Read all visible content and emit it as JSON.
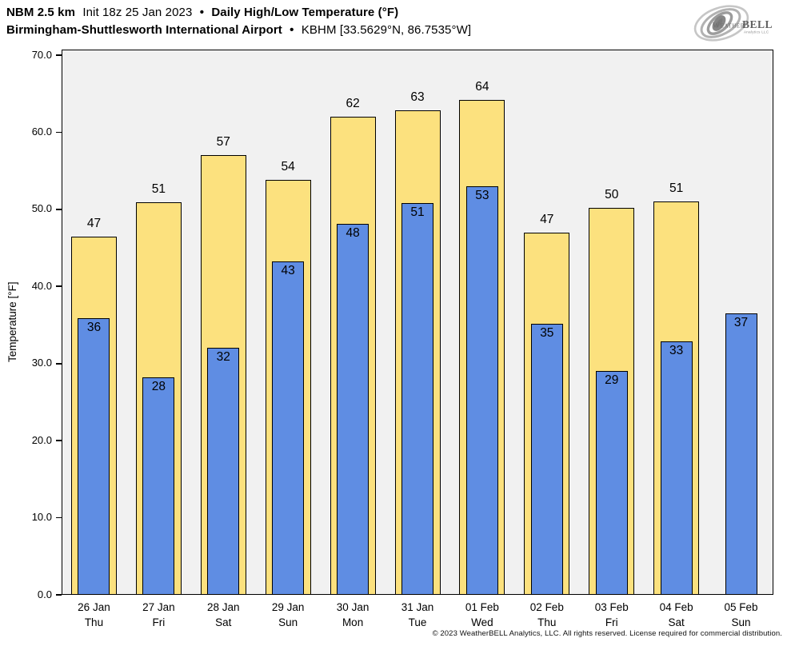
{
  "header": {
    "title": {
      "model": "NBM 2.5 km",
      "init": "Init 18z 25 Jan 2023",
      "bullet": "•",
      "product": "Daily High/Low Temperature (°F)"
    },
    "subtitle": {
      "station": "Birmingham-Shuttlesworth International Airport",
      "bullet": "•",
      "station_id": "KBHM [33.5629°N, 86.7535°W]"
    }
  },
  "logo": {
    "brand_weather": "Weather",
    "brand_bell": "BELL",
    "subtext": "Analytics LLC"
  },
  "footer": {
    "copyright": "© 2023 WeatherBELL Analytics, LLC. All rights reserved. License required for commercial distribution."
  },
  "chart_data": {
    "type": "bar",
    "title": "Daily High/Low Temperature (°F)",
    "ylabel": "Temperature [°F]",
    "ylim": [
      0,
      70
    ],
    "yticks": [
      0,
      10,
      20,
      30,
      40,
      50,
      60,
      70
    ],
    "ytick_decimals": 1,
    "grid": false,
    "legend": "none",
    "plot_background": "#F1F1F1",
    "bar_outline": "#000000",
    "series_colors": {
      "high": "#FCE17E",
      "low": "#5F8DE3"
    },
    "series_names": [
      "Daily High",
      "Daily Low"
    ],
    "days": [
      {
        "date": "26 Jan",
        "weekday": "Thu",
        "high_label": 47,
        "low_label": 36,
        "high": 46.5,
        "low": 35.9
      },
      {
        "date": "27 Jan",
        "weekday": "Fri",
        "high_label": 51,
        "low_label": 28,
        "high": 50.9,
        "low": 28.2
      },
      {
        "date": "28 Jan",
        "weekday": "Sat",
        "high_label": 57,
        "low_label": 32,
        "high": 57.0,
        "low": 32.0
      },
      {
        "date": "29 Jan",
        "weekday": "Sun",
        "high_label": 54,
        "low_label": 43,
        "high": 53.8,
        "low": 43.2
      },
      {
        "date": "30 Jan",
        "weekday": "Mon",
        "high_label": 62,
        "low_label": 48,
        "high": 62.0,
        "low": 48.1
      },
      {
        "date": "31 Jan",
        "weekday": "Tue",
        "high_label": 63,
        "low_label": 51,
        "high": 62.8,
        "low": 50.8
      },
      {
        "date": "01 Feb",
        "weekday": "Wed",
        "high_label": 64,
        "low_label": 53,
        "high": 64.2,
        "low": 53.0
      },
      {
        "date": "02 Feb",
        "weekday": "Thu",
        "high_label": 47,
        "low_label": 35,
        "high": 47.0,
        "low": 35.2
      },
      {
        "date": "03 Feb",
        "weekday": "Fri",
        "high_label": 50,
        "low_label": 29,
        "high": 50.2,
        "low": 29.0
      },
      {
        "date": "04 Feb",
        "weekday": "Sat",
        "high_label": 51,
        "low_label": 33,
        "high": 51.0,
        "low": 32.9
      },
      {
        "date": "05 Feb",
        "weekday": "Sun",
        "high_label": null,
        "low_label": 37,
        "high": null,
        "low": 36.5
      }
    ]
  }
}
